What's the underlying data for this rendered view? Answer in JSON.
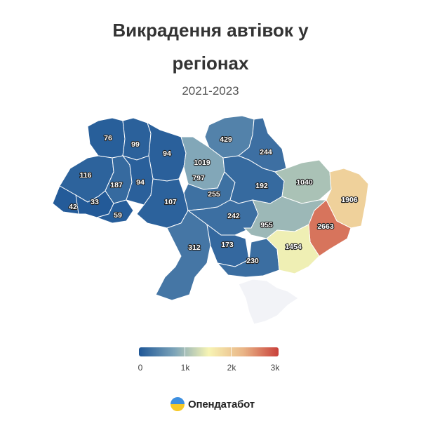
{
  "header": {
    "title_line1": "Викрадення автівок у",
    "title_line2": "регіонах",
    "subtitle": "2021-2023"
  },
  "map_data": {
    "type": "choropleth",
    "scale": {
      "min": 0,
      "max": 3000,
      "colors": [
        "#1f5797",
        "#7aa2b8",
        "#f7f4b4",
        "#e9b486",
        "#c9403a"
      ]
    },
    "regions": [
      {
        "id": "volyn",
        "value": 76
      },
      {
        "id": "rivne",
        "value": 99
      },
      {
        "id": "zhytomyr",
        "value": 94
      },
      {
        "id": "kyiv-city",
        "value": 1019
      },
      {
        "id": "kyiv-oblast",
        "value": 797
      },
      {
        "id": "chernihiv",
        "value": 429
      },
      {
        "id": "sumy",
        "value": 244
      },
      {
        "id": "lviv",
        "value": 116
      },
      {
        "id": "ternopil",
        "value": 187
      },
      {
        "id": "khmelnytskyi",
        "value": 94
      },
      {
        "id": "zakarpattia",
        "value": 42
      },
      {
        "id": "ivano-frankivsk",
        "value": 33
      },
      {
        "id": "chernivtsi",
        "value": 59
      },
      {
        "id": "vinnytsia",
        "value": 107
      },
      {
        "id": "cherkasy",
        "value": 255
      },
      {
        "id": "poltava",
        "value": 192
      },
      {
        "id": "kharkiv",
        "value": 1040
      },
      {
        "id": "luhansk",
        "value": 1906
      },
      {
        "id": "kirovohrad",
        "value": 242
      },
      {
        "id": "dnipropetrovsk",
        "value": 955
      },
      {
        "id": "donetsk",
        "value": 2663
      },
      {
        "id": "odesa",
        "value": 312
      },
      {
        "id": "mykolaiv",
        "value": 173
      },
      {
        "id": "kherson",
        "value": 230
      },
      {
        "id": "zaporizhzhia",
        "value": 1454
      },
      {
        "id": "crimea",
        "value": null
      }
    ]
  },
  "legend": {
    "ticks": [
      "0",
      "1k",
      "2k",
      "3k"
    ]
  },
  "brand": {
    "name": "Опендатабот"
  }
}
